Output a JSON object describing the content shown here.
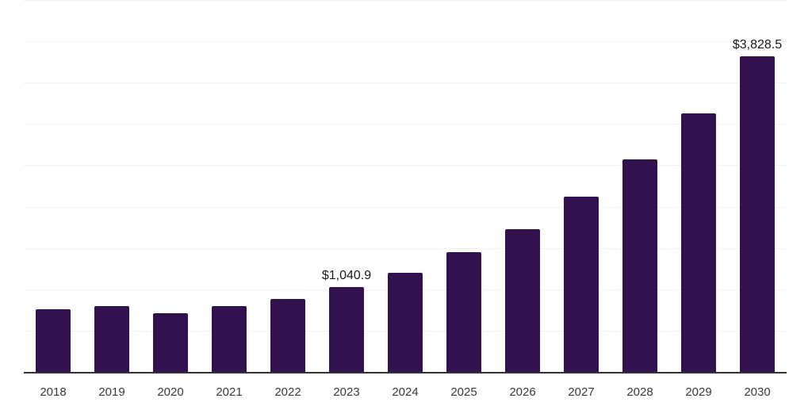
{
  "chart_data": {
    "type": "bar",
    "title": "",
    "xlabel": "",
    "ylabel": "",
    "categories": [
      "2018",
      "2019",
      "2020",
      "2021",
      "2022",
      "2023",
      "2024",
      "2025",
      "2026",
      "2027",
      "2028",
      "2029",
      "2030"
    ],
    "values": [
      769,
      803,
      721,
      808,
      894,
      1040.9,
      1211,
      1462,
      1740,
      2135,
      2577,
      3135,
      3828.5
    ],
    "data_labels": {
      "2023": "$1,040.9",
      "2030": "$3,828.5"
    },
    "ylim": [
      0,
      4500
    ],
    "gridline_step": 500,
    "grid": "horizontal gridlines on",
    "legend": "none"
  },
  "colors": {
    "bar": "#32124E",
    "gridline": "#F1F1F1",
    "axis_line": "#333333",
    "tick_label": "#3A3A3A",
    "data_label": "#1A1A1A",
    "background": "#FFFFFF"
  }
}
